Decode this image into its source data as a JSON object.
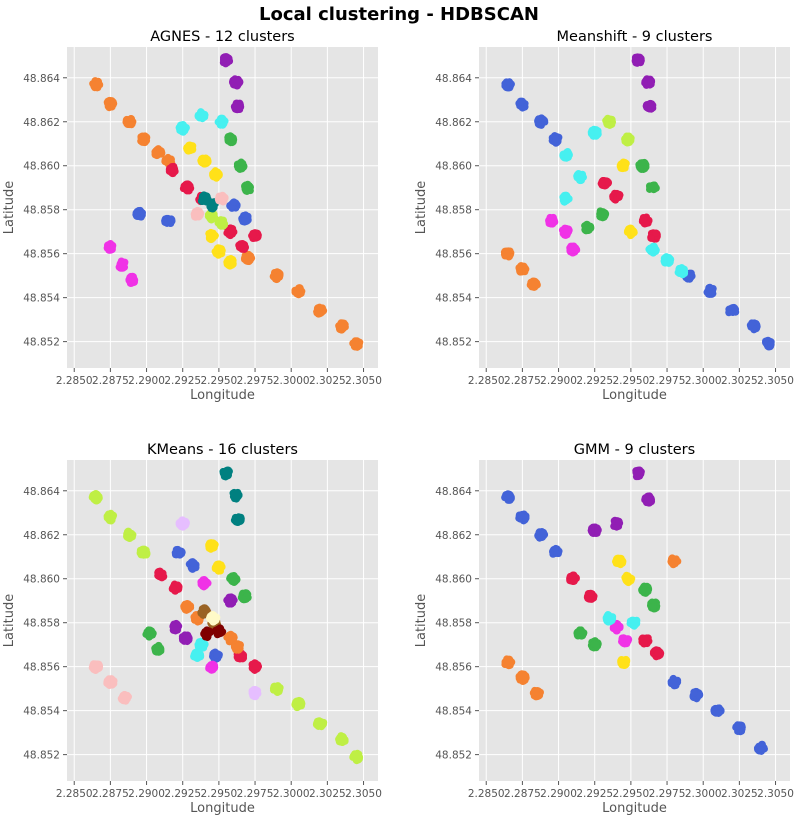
{
  "figure": {
    "title": "Local clustering - HDBSCAN"
  },
  "chart_data": [
    {
      "type": "scatter",
      "title": "AGNES - 12 clusters",
      "xlabel": "Longitude",
      "ylabel": "Latitude",
      "xlim": [
        2.2845,
        2.306
      ],
      "ylim": [
        48.8508,
        48.8654
      ],
      "xticks": [
        "2.2850",
        "2.2875",
        "2.2900",
        "2.2925",
        "2.2950",
        "2.2975",
        "2.3000",
        "2.3025",
        "2.3050"
      ],
      "yticks": [
        "48.852",
        "48.854",
        "48.856",
        "48.858",
        "48.860",
        "48.862",
        "48.864"
      ],
      "grid": true,
      "clusters": [
        {
          "color": "#f58231",
          "points": [
            [
              2.2865,
              48.8637
            ],
            [
              2.2875,
              48.8628
            ],
            [
              2.2888,
              48.862
            ],
            [
              2.2898,
              48.8612
            ],
            [
              2.2908,
              48.8606
            ],
            [
              2.2915,
              48.8602
            ]
          ]
        },
        {
          "color": "#f58231",
          "points": [
            [
              2.297,
              48.8558
            ],
            [
              2.299,
              48.855
            ],
            [
              2.3005,
              48.8543
            ],
            [
              2.302,
              48.8534
            ],
            [
              2.3035,
              48.8527
            ],
            [
              2.3045,
              48.8519
            ]
          ]
        },
        {
          "color": "#e6194b",
          "points": [
            [
              2.2918,
              48.8598
            ],
            [
              2.2928,
              48.859
            ],
            [
              2.2938,
              48.8585
            ]
          ]
        },
        {
          "color": "#e6194b",
          "points": [
            [
              2.2958,
              48.857
            ],
            [
              2.2966,
              48.8563
            ],
            [
              2.2975,
              48.8568
            ]
          ]
        },
        {
          "color": "#ffe119",
          "points": [
            [
              2.293,
              48.8608
            ],
            [
              2.294,
              48.8602
            ],
            [
              2.2948,
              48.8596
            ]
          ]
        },
        {
          "color": "#ffe119",
          "points": [
            [
              2.2945,
              48.8568
            ],
            [
              2.295,
              48.8561
            ],
            [
              2.2958,
              48.8556
            ]
          ]
        },
        {
          "color": "#46f0f0",
          "points": [
            [
              2.2925,
              48.8617
            ],
            [
              2.2938,
              48.8623
            ],
            [
              2.2952,
              48.862
            ]
          ]
        },
        {
          "color": "#911eb4",
          "points": [
            [
              2.2955,
              48.8648
            ],
            [
              2.2962,
              48.8638
            ],
            [
              2.2963,
              48.8627
            ]
          ]
        },
        {
          "color": "#3cb44b",
          "points": [
            [
              2.2958,
              48.8612
            ],
            [
              2.2965,
              48.86
            ],
            [
              2.297,
              48.859
            ]
          ]
        },
        {
          "color": "#4363d8",
          "points": [
            [
              2.2895,
              48.8578
            ],
            [
              2.2915,
              48.8575
            ],
            [
              2.296,
              48.8582
            ],
            [
              2.2968,
              48.8576
            ]
          ]
        },
        {
          "color": "#f032e6",
          "points": [
            [
              2.2875,
              48.8563
            ],
            [
              2.2883,
              48.8555
            ],
            [
              2.289,
              48.8548
            ]
          ]
        },
        {
          "color": "#bfef45",
          "points": [
            [
              2.2945,
              48.8577
            ],
            [
              2.2952,
              48.8574
            ]
          ]
        },
        {
          "color": "#008080",
          "points": [
            [
              2.294,
              48.8585
            ],
            [
              2.2946,
              48.8582
            ]
          ]
        },
        {
          "color": "#fabebe",
          "points": [
            [
              2.2952,
              48.8585
            ],
            [
              2.2935,
              48.8578
            ]
          ]
        }
      ]
    },
    {
      "type": "scatter",
      "title": "Meanshift - 9 clusters",
      "xlabel": "Longitude",
      "ylabel": "Latitude",
      "xlim": [
        2.2845,
        2.306
      ],
      "ylim": [
        48.8508,
        48.8654
      ],
      "xticks": [
        "2.2850",
        "2.2875",
        "2.2900",
        "2.2925",
        "2.2950",
        "2.2975",
        "2.3000",
        "2.3025",
        "2.3050"
      ],
      "yticks": [
        "48.852",
        "48.854",
        "48.856",
        "48.858",
        "48.860",
        "48.862",
        "48.864"
      ],
      "grid": true,
      "clusters": [
        {
          "color": "#4363d8",
          "points": [
            [
              2.2865,
              48.8637
            ],
            [
              2.2875,
              48.8628
            ],
            [
              2.2888,
              48.862
            ],
            [
              2.2898,
              48.8612
            ]
          ]
        },
        {
          "color": "#4363d8",
          "points": [
            [
              2.299,
              48.855
            ],
            [
              2.3005,
              48.8543
            ],
            [
              2.302,
              48.8534
            ],
            [
              2.3035,
              48.8527
            ],
            [
              2.3045,
              48.8519
            ]
          ]
        },
        {
          "color": "#46f0f0",
          "points": [
            [
              2.2905,
              48.8605
            ],
            [
              2.2915,
              48.8595
            ],
            [
              2.2925,
              48.8615
            ],
            [
              2.2905,
              48.8585
            ]
          ]
        },
        {
          "color": "#46f0f0",
          "points": [
            [
              2.2965,
              48.8562
            ],
            [
              2.2975,
              48.8557
            ],
            [
              2.2985,
              48.8552
            ]
          ]
        },
        {
          "color": "#bfef45",
          "points": [
            [
              2.2935,
              48.862
            ],
            [
              2.2948,
              48.8612
            ]
          ]
        },
        {
          "color": "#911eb4",
          "points": [
            [
              2.2955,
              48.8648
            ],
            [
              2.2962,
              48.8638
            ],
            [
              2.2963,
              48.8627
            ]
          ]
        },
        {
          "color": "#3cb44b",
          "points": [
            [
              2.2958,
              48.86
            ],
            [
              2.2965,
              48.859
            ],
            [
              2.293,
              48.8578
            ],
            [
              2.292,
              48.8572
            ]
          ]
        },
        {
          "color": "#e6194b",
          "points": [
            [
              2.2932,
              48.8592
            ],
            [
              2.294,
              48.8586
            ],
            [
              2.296,
              48.8575
            ],
            [
              2.2966,
              48.8568
            ]
          ]
        },
        {
          "color": "#ffe119",
          "points": [
            [
              2.2945,
              48.86
            ],
            [
              2.295,
              48.857
            ]
          ]
        },
        {
          "color": "#f032e6",
          "points": [
            [
              2.2895,
              48.8575
            ],
            [
              2.2905,
              48.857
            ],
            [
              2.291,
              48.8562
            ]
          ]
        },
        {
          "color": "#f58231",
          "points": [
            [
              2.2865,
              48.856
            ],
            [
              2.2875,
              48.8553
            ],
            [
              2.2883,
              48.8546
            ]
          ]
        }
      ]
    },
    {
      "type": "scatter",
      "title": "KMeans - 16 clusters",
      "xlabel": "Longitude",
      "ylabel": "Latitude",
      "xlim": [
        2.2845,
        2.306
      ],
      "ylim": [
        48.8508,
        48.8654
      ],
      "xticks": [
        "2.2850",
        "2.2875",
        "2.2900",
        "2.2925",
        "2.2950",
        "2.2975",
        "2.3000",
        "2.3025",
        "2.3050"
      ],
      "yticks": [
        "48.852",
        "48.854",
        "48.856",
        "48.858",
        "48.860",
        "48.862",
        "48.864"
      ],
      "grid": true,
      "clusters": [
        {
          "color": "#bfef45",
          "points": [
            [
              2.2865,
              48.8637
            ],
            [
              2.2875,
              48.8628
            ],
            [
              2.2888,
              48.862
            ],
            [
              2.2898,
              48.8612
            ]
          ]
        },
        {
          "color": "#bfef45",
          "points": [
            [
              2.299,
              48.855
            ],
            [
              2.3005,
              48.8543
            ],
            [
              2.302,
              48.8534
            ],
            [
              2.3035,
              48.8527
            ],
            [
              2.3045,
              48.8519
            ]
          ]
        },
        {
          "color": "#e6194b",
          "points": [
            [
              2.291,
              48.8602
            ],
            [
              2.292,
              48.8596
            ]
          ]
        },
        {
          "color": "#e6194b",
          "points": [
            [
              2.2965,
              48.8565
            ],
            [
              2.2975,
              48.856
            ]
          ]
        },
        {
          "color": "#4363d8",
          "points": [
            [
              2.2922,
              48.8612
            ],
            [
              2.2932,
              48.8606
            ],
            [
              2.2948,
              48.8565
            ]
          ]
        },
        {
          "color": "#ffe119",
          "points": [
            [
              2.2945,
              48.8615
            ],
            [
              2.295,
              48.8605
            ]
          ]
        },
        {
          "color": "#008080",
          "points": [
            [
              2.2955,
              48.8648
            ],
            [
              2.2962,
              48.8638
            ],
            [
              2.2963,
              48.8627
            ]
          ]
        },
        {
          "color": "#3cb44b",
          "points": [
            [
              2.296,
              48.86
            ],
            [
              2.2968,
              48.8592
            ],
            [
              2.2902,
              48.8575
            ],
            [
              2.2908,
              48.8568
            ]
          ]
        },
        {
          "color": "#f58231",
          "points": [
            [
              2.2928,
              48.8587
            ],
            [
              2.2935,
              48.8582
            ],
            [
              2.2958,
              48.8573
            ],
            [
              2.2963,
              48.8569
            ]
          ]
        },
        {
          "color": "#911eb4",
          "points": [
            [
              2.292,
              48.8578
            ],
            [
              2.2927,
              48.8573
            ],
            [
              2.2958,
              48.859
            ]
          ]
        },
        {
          "color": "#f032e6",
          "points": [
            [
              2.294,
              48.8598
            ],
            [
              2.2945,
              48.856
            ]
          ]
        },
        {
          "color": "#fabebe",
          "points": [
            [
              2.2865,
              48.856
            ],
            [
              2.2875,
              48.8553
            ],
            [
              2.2885,
              48.8546
            ]
          ]
        },
        {
          "color": "#46f0f0",
          "points": [
            [
              2.2935,
              48.8565
            ],
            [
              2.2938,
              48.857
            ]
          ]
        },
        {
          "color": "#9a6324",
          "points": [
            [
              2.294,
              48.8585
            ],
            [
              2.2947,
              48.858
            ]
          ]
        },
        {
          "color": "#800000",
          "points": [
            [
              2.2942,
              48.8575
            ],
            [
              2.295,
              48.8576
            ]
          ]
        },
        {
          "color": "#fffac8",
          "points": [
            [
              2.2946,
              48.8582
            ]
          ]
        },
        {
          "color": "#e6beff",
          "points": [
            [
              2.2925,
              48.8625
            ],
            [
              2.2975,
              48.8548
            ]
          ]
        }
      ]
    },
    {
      "type": "scatter",
      "title": "GMM - 9 clusters",
      "xlabel": "Longitude",
      "ylabel": "Latitude",
      "xlim": [
        2.2845,
        2.306
      ],
      "ylim": [
        48.8508,
        48.8654
      ],
      "xticks": [
        "2.2850",
        "2.2875",
        "2.2900",
        "2.2925",
        "2.2950",
        "2.2975",
        "2.3000",
        "2.3025",
        "2.3050"
      ],
      "yticks": [
        "48.852",
        "48.854",
        "48.856",
        "48.858",
        "48.860",
        "48.862",
        "48.864"
      ],
      "grid": true,
      "clusters": [
        {
          "color": "#4363d8",
          "points": [
            [
              2.2865,
              48.8637
            ],
            [
              2.2875,
              48.8628
            ],
            [
              2.2888,
              48.862
            ],
            [
              2.2898,
              48.8612
            ]
          ]
        },
        {
          "color": "#4363d8",
          "points": [
            [
              2.298,
              48.8553
            ],
            [
              2.2995,
              48.8547
            ],
            [
              2.301,
              48.854
            ],
            [
              2.3025,
              48.8532
            ],
            [
              2.304,
              48.8523
            ]
          ]
        },
        {
          "color": "#911eb4",
          "points": [
            [
              2.2925,
              48.8622
            ],
            [
              2.294,
              48.8625
            ],
            [
              2.2955,
              48.8648
            ],
            [
              2.2962,
              48.8636
            ]
          ]
        },
        {
          "color": "#e6194b",
          "points": [
            [
              2.291,
              48.86
            ],
            [
              2.2922,
              48.8592
            ],
            [
              2.296,
              48.8572
            ],
            [
              2.2968,
              48.8566
            ]
          ]
        },
        {
          "color": "#ffe119",
          "points": [
            [
              2.2942,
              48.8608
            ],
            [
              2.2948,
              48.86
            ],
            [
              2.2945,
              48.8562
            ]
          ]
        },
        {
          "color": "#3cb44b",
          "points": [
            [
              2.296,
              48.8595
            ],
            [
              2.2966,
              48.8588
            ],
            [
              2.2915,
              48.8575
            ],
            [
              2.2925,
              48.857
            ]
          ]
        },
        {
          "color": "#f032e6",
          "points": [
            [
              2.294,
              48.8578
            ],
            [
              2.2946,
              48.8572
            ]
          ]
        },
        {
          "color": "#46f0f0",
          "points": [
            [
              2.2935,
              48.8582
            ],
            [
              2.2952,
              48.858
            ]
          ]
        },
        {
          "color": "#f58231",
          "points": [
            [
              2.2865,
              48.8562
            ],
            [
              2.2875,
              48.8555
            ],
            [
              2.2885,
              48.8548
            ],
            [
              2.298,
              48.8608
            ]
          ]
        }
      ]
    }
  ]
}
